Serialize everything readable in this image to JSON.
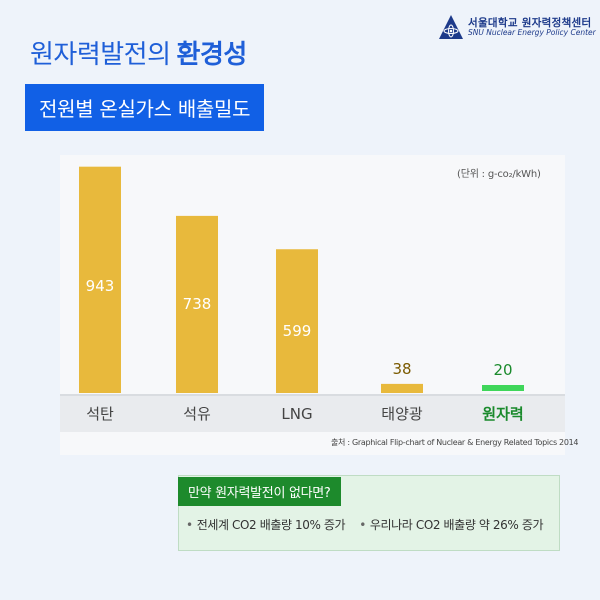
{
  "logo": {
    "name": "서울대학교 원자력정책센터",
    "sub": "SNU Nuclear Energy Policy Center"
  },
  "heading": {
    "prefix": "원자력발전의",
    "emphasis": "환경성"
  },
  "subtitle": "전원별 온실가스 배출밀도",
  "unit_label": "(단위 : g-co₂/kWh)",
  "source": "출처 : Graphical Flip-chart of Nuclear & Energy Related Topics 2014",
  "colors": {
    "bar": "#e8b93c",
    "highlight": "#3fd65a",
    "highlight_text": "#1a8a2c",
    "label_dark": "#7a5a00"
  },
  "chart_data": {
    "type": "bar",
    "categories": [
      "석탄",
      "석유",
      "LNG",
      "태양광",
      "원자력"
    ],
    "values": [
      943,
      738,
      599,
      38,
      20
    ],
    "highlight_category": "원자력",
    "title": "",
    "xlabel": "",
    "ylabel": "",
    "ylim": [
      0,
      1000
    ]
  },
  "note": {
    "title": "만약 원자력발전이 없다면?",
    "items": [
      "전세계 CO2 배출량 10% 증가",
      "우리나라 CO2 배출량 약 26% 증가"
    ]
  }
}
